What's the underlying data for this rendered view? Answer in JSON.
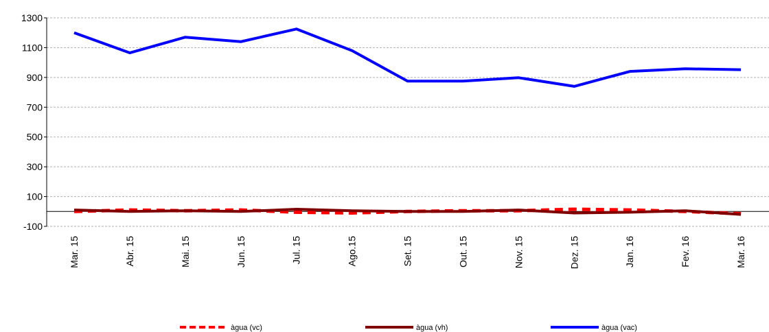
{
  "chart_data": {
    "type": "line",
    "categories": [
      "Mar. 15",
      "Abr. 15",
      "Mai. 15",
      "Jun. 15",
      "Jul. 15",
      "Ago.15",
      "Set. 15",
      "Out. 15",
      "Nov. 15",
      "Dez. 15",
      "Jan. 16",
      "Fev. 16",
      "Mar. 16"
    ],
    "series": [
      {
        "name": "àgua (vc)",
        "color": "#ff0000",
        "dashed": true,
        "values": [
          0,
          10,
          5,
          10,
          -5,
          -10,
          0,
          5,
          5,
          15,
          10,
          0,
          -15
        ]
      },
      {
        "name": "àgua (vh)",
        "color": "#800000",
        "dashed": false,
        "values": [
          10,
          0,
          5,
          0,
          15,
          5,
          0,
          0,
          10,
          -10,
          -5,
          5,
          -20
        ]
      },
      {
        "name": "àgua (vac)",
        "color": "#0000ff",
        "dashed": false,
        "values": [
          1200,
          1065,
          1170,
          1140,
          1225,
          1080,
          875,
          875,
          898,
          840,
          940,
          958,
          952
        ]
      }
    ],
    "ylim": [
      -100,
      1300
    ],
    "yticks": [
      -100,
      100,
      300,
      500,
      700,
      900,
      1100,
      1300
    ],
    "grid": true,
    "legend": "bottom"
  }
}
